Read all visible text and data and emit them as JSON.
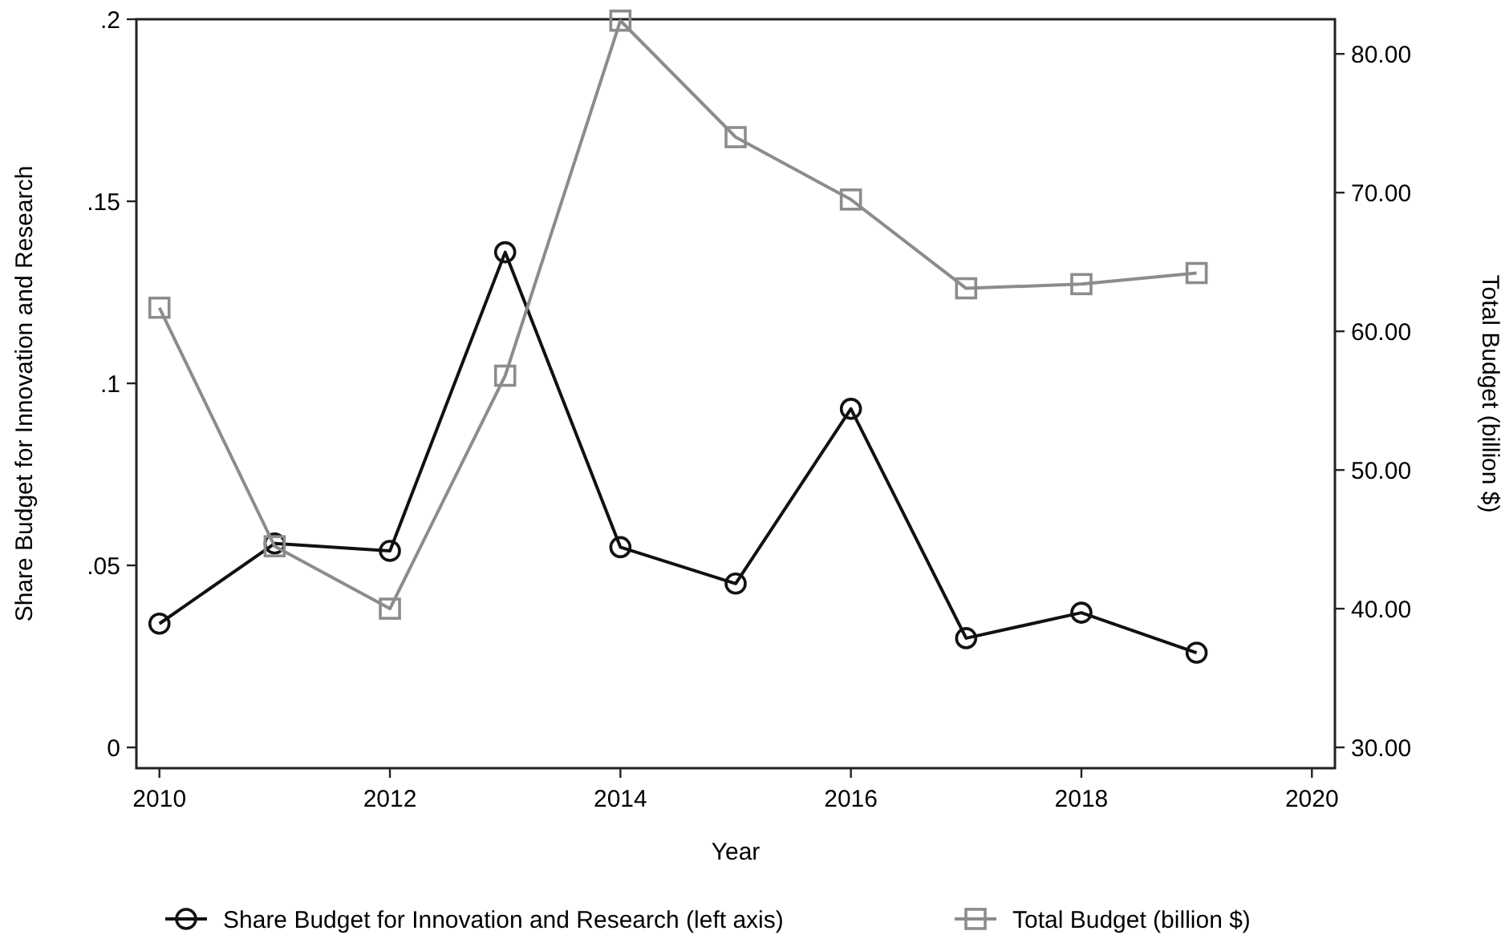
{
  "chart_data": {
    "type": "line",
    "xlabel": "Year",
    "ylabel": "Share Budget for Innovation and Research",
    "y2label": "Total Budget (billion $)",
    "x": [
      2010,
      2011,
      2012,
      2013,
      2014,
      2015,
      2016,
      2017,
      2018,
      2019
    ],
    "xlim": [
      2009.8,
      2020.2
    ],
    "xticks": [
      2010,
      2012,
      2014,
      2016,
      2018,
      2020
    ],
    "ylim": [
      -0.0057,
      0.2
    ],
    "yticks": [
      {
        "value": 0,
        "label": "0"
      },
      {
        "value": 0.05,
        "label": ".05"
      },
      {
        "value": 0.1,
        "label": ".1"
      },
      {
        "value": 0.15,
        "label": ".15"
      },
      {
        "value": 0.2,
        "label": ".2"
      }
    ],
    "y2lim": [
      28.5,
      82.5
    ],
    "y2ticks": [
      {
        "value": 30,
        "label": "30.00"
      },
      {
        "value": 40,
        "label": "40.00"
      },
      {
        "value": 50,
        "label": "50.00"
      },
      {
        "value": 60,
        "label": "60.00"
      },
      {
        "value": 70,
        "label": "70.00"
      },
      {
        "value": 80,
        "label": "80.00"
      }
    ],
    "grid": false,
    "legend": "bottom",
    "line_style": "solid",
    "series": [
      {
        "name": "Share Budget for Innovation and Research (left axis)",
        "color": "#111111",
        "marker": "circle",
        "values": [
          0.034,
          0.056,
          0.054,
          0.136,
          0.055,
          0.045,
          0.093,
          0.03,
          0.037,
          0.026
        ]
      },
      {
        "name": "Total Budget (billion $)",
        "color": "#8c8c8c",
        "marker": "square",
        "axis": "y2",
        "values": [
          61.7,
          44.5,
          40.0,
          56.8,
          82.4,
          74.0,
          69.5,
          63.1,
          63.4,
          64.2
        ]
      }
    ]
  }
}
